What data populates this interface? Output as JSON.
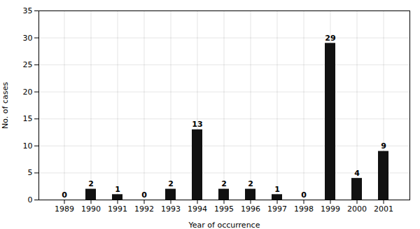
{
  "chart_data": {
    "type": "bar",
    "categories": [
      "1989",
      "1990",
      "1991",
      "1992",
      "1993",
      "1994",
      "1995",
      "1996",
      "1997",
      "1998",
      "1999",
      "2000",
      "2001"
    ],
    "values": [
      0,
      2,
      1,
      0,
      2,
      13,
      2,
      2,
      1,
      0,
      29,
      4,
      9
    ],
    "color": "#111111",
    "xlabel": "Year of occurrence",
    "ylabel": "No. of cases",
    "ylim": [
      0,
      35
    ],
    "yticks": [
      0,
      5,
      10,
      15,
      20,
      25,
      30,
      35
    ],
    "grid": true,
    "data_labels": true
  }
}
